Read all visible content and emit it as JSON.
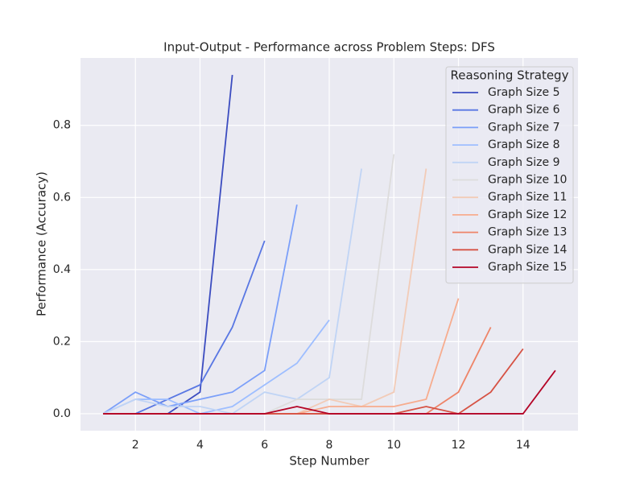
{
  "chart_data": {
    "type": "line",
    "title": "Input-Output - Performance across Problem Steps: DFS",
    "x_label": "Step Number",
    "y_label": "Performance (Accuracy)",
    "legend_title": "Reasoning Strategy",
    "legend": "upper right",
    "grid": true,
    "x": [
      1,
      2,
      3,
      4,
      5,
      6,
      7,
      8,
      9,
      10,
      11,
      12,
      13,
      14,
      15
    ],
    "series": [
      {
        "name": "Graph Size 5",
        "color": "#3b4cc0",
        "values": [
          0,
          0,
          0,
          0.06,
          0.94,
          null,
          null,
          null,
          null,
          null,
          null,
          null,
          null,
          null,
          null
        ]
      },
      {
        "name": "Graph Size 6",
        "color": "#5977e3",
        "values": [
          0,
          0,
          0.04,
          0.08,
          0.24,
          0.48,
          null,
          null,
          null,
          null,
          null,
          null,
          null,
          null,
          null
        ]
      },
      {
        "name": "Graph Size 7",
        "color": "#7b9ff9",
        "values": [
          0,
          0.06,
          0.02,
          0.04,
          0.06,
          0.12,
          0.58,
          null,
          null,
          null,
          null,
          null,
          null,
          null,
          null
        ]
      },
      {
        "name": "Graph Size 8",
        "color": "#9ebeff",
        "values": [
          0,
          0.04,
          0.04,
          0,
          0.02,
          0.08,
          0.14,
          0.26,
          null,
          null,
          null,
          null,
          null,
          null,
          null
        ]
      },
      {
        "name": "Graph Size 9",
        "color": "#c0d4f5",
        "values": [
          0,
          0.04,
          0.02,
          0.02,
          0,
          0.06,
          0.04,
          0.1,
          0.68,
          null,
          null,
          null,
          null,
          null,
          null
        ]
      },
      {
        "name": "Graph Size 10",
        "color": "#dddcdc",
        "values": [
          0,
          0,
          0,
          0,
          0,
          0,
          0.04,
          0.04,
          0.04,
          0.72,
          null,
          null,
          null,
          null,
          null
        ]
      },
      {
        "name": "Graph Size 11",
        "color": "#f2cbb7",
        "values": [
          0,
          0,
          0,
          0,
          0,
          0,
          0,
          0.04,
          0.02,
          0.06,
          0.68,
          null,
          null,
          null,
          null
        ]
      },
      {
        "name": "Graph Size 12",
        "color": "#f7ac8e",
        "values": [
          0,
          0,
          0,
          0,
          0,
          0,
          0,
          0.02,
          0.02,
          0.02,
          0.04,
          0.32,
          null,
          null,
          null
        ]
      },
      {
        "name": "Graph Size 13",
        "color": "#ee8468",
        "values": [
          0,
          0,
          0,
          0,
          0,
          0,
          0,
          0,
          0,
          0,
          0,
          0.06,
          0.24,
          null,
          null
        ]
      },
      {
        "name": "Graph Size 14",
        "color": "#d65244",
        "values": [
          0,
          0,
          0,
          0,
          0,
          0,
          0,
          0,
          0,
          0,
          0.02,
          0,
          0.06,
          0.18,
          null
        ]
      },
      {
        "name": "Graph Size 15",
        "color": "#b40426",
        "values": [
          0,
          0,
          0,
          0,
          0,
          0,
          0.02,
          0,
          0,
          0,
          0,
          0,
          0,
          0,
          0.12
        ]
      }
    ],
    "xlim": [
      0.3,
      15.7
    ],
    "ylim": [
      -0.047,
      0.987
    ],
    "xticks": [
      2,
      4,
      6,
      8,
      10,
      12,
      14
    ],
    "yticks": [
      {
        "value": 0,
        "label": "0.0"
      },
      0.2,
      0.4,
      0.6,
      0.8
    ]
  }
}
